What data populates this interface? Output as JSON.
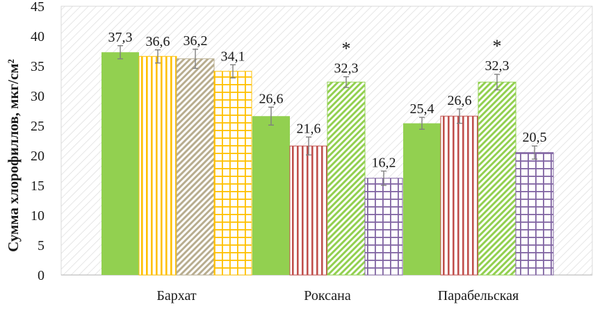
{
  "chart_data": {
    "type": "bar",
    "title": "",
    "xlabel": "",
    "ylabel": "Сумма хлорофиллов, мкг/см²",
    "ylim": [
      0,
      45
    ],
    "yticks": [
      0,
      5,
      10,
      15,
      20,
      25,
      30,
      35,
      40,
      45
    ],
    "grid": false,
    "legend": "none",
    "categories": [
      "Бархат",
      "Роксана",
      "Парабельская"
    ],
    "groups": [
      {
        "category": "Бархат",
        "bars": [
          {
            "value": 37.3,
            "label": "37,3",
            "error": 1.1,
            "pattern": "solid",
            "color": "#92d050",
            "significant": false
          },
          {
            "value": 36.6,
            "label": "36,6",
            "error": 1.1,
            "pattern": "vertical",
            "color": "#ffc000",
            "significant": false
          },
          {
            "value": 36.2,
            "label": "36,2",
            "error": 1.6,
            "pattern": "diagonal",
            "color": "#b8ad8f",
            "significant": false
          },
          {
            "value": 34.1,
            "label": "34,1",
            "error": 1.1,
            "pattern": "grid",
            "color": "#ffc000",
            "significant": false
          }
        ]
      },
      {
        "category": "Роксана",
        "bars": [
          {
            "value": 26.6,
            "label": "26,6",
            "error": 1.5,
            "pattern": "solid",
            "color": "#92d050",
            "significant": false
          },
          {
            "value": 21.6,
            "label": "21,6",
            "error": 1.5,
            "pattern": "vertical",
            "color": "#c0504d",
            "significant": false
          },
          {
            "value": 32.3,
            "label": "32,3",
            "error": 0.9,
            "pattern": "diagonal",
            "color": "#92d050",
            "significant": true
          },
          {
            "value": 16.2,
            "label": "16,2",
            "error": 1.2,
            "pattern": "grid",
            "color": "#8064a2",
            "significant": false
          }
        ]
      },
      {
        "category": "Парабельская",
        "bars": [
          {
            "value": 25.4,
            "label": "25,4",
            "error": 1.0,
            "pattern": "solid",
            "color": "#92d050",
            "significant": false
          },
          {
            "value": 26.6,
            "label": "26,6",
            "error": 1.2,
            "pattern": "vertical",
            "color": "#c0504d",
            "significant": false
          },
          {
            "value": 32.3,
            "label": "32,3",
            "error": 1.3,
            "pattern": "diagonal",
            "color": "#92d050",
            "significant": true
          },
          {
            "value": 20.5,
            "label": "20,5",
            "error": 1.1,
            "pattern": "grid",
            "color": "#8064a2",
            "significant": false
          }
        ]
      }
    ],
    "significance_marker": "*",
    "background_pattern": "diagonal-gray",
    "errorbar_color": "#7f7f7f"
  }
}
